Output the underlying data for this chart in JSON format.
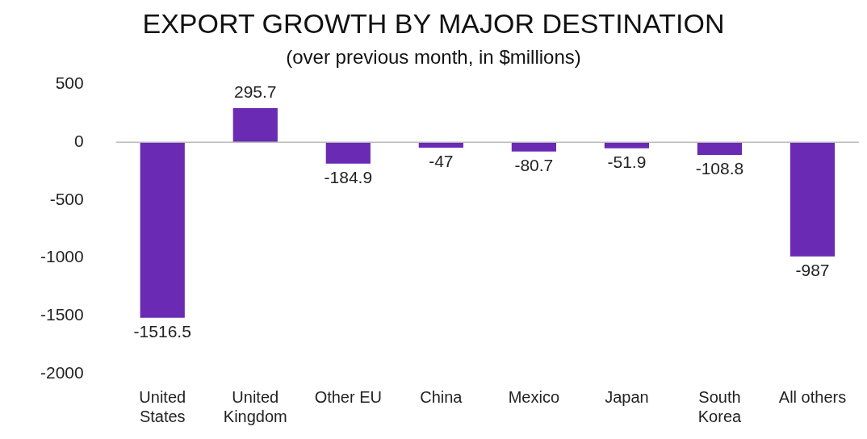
{
  "chart_data": {
    "type": "bar",
    "title": "EXPORT GROWTH BY MAJOR DESTINATION",
    "subtitle": "(over previous month, in $millions)",
    "categories": [
      "United States",
      "United Kingdom",
      "Other EU",
      "China",
      "Mexico",
      "Japan",
      "South Korea",
      "All others"
    ],
    "values": [
      -1516.5,
      295.7,
      -184.9,
      -47,
      -80.7,
      -51.9,
      -108.8,
      -987
    ],
    "color": "#6a2ab3",
    "ylim": [
      -2000,
      500
    ],
    "yticks": [
      -2000,
      -1500,
      -1000,
      -500,
      0,
      500
    ],
    "grid": false,
    "legend": false,
    "ref_lines": [
      {
        "axis": "y",
        "value": 0,
        "color": "#bbbbbb"
      }
    ],
    "data_labels": true
  }
}
